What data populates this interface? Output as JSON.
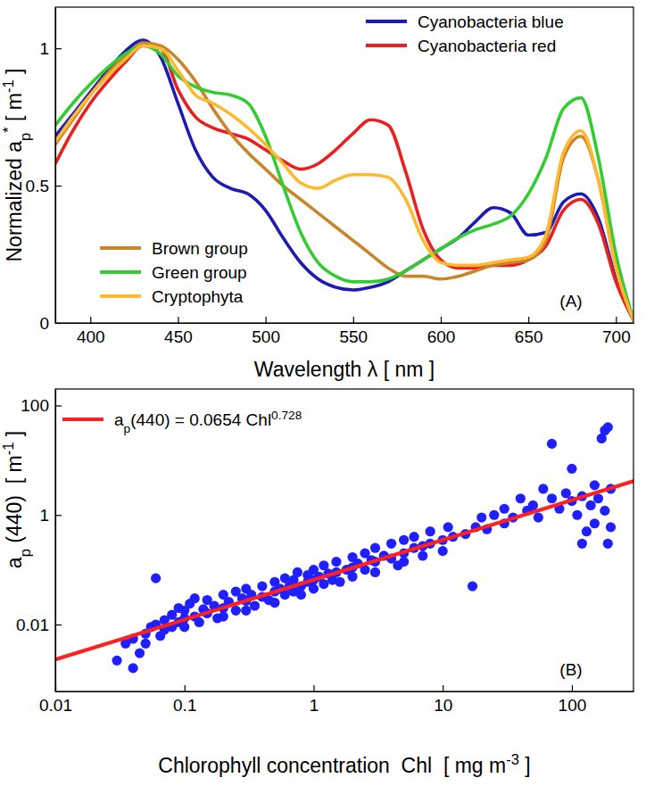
{
  "chart_data": [
    {
      "type": "line",
      "xlabel": "Wavelength λ [ nm ]",
      "ylabel": [
        "Normalized a",
        {
          "sub": "p"
        },
        {
          "sup": "*"
        },
        " [ m",
        {
          "sup": "-1"
        },
        " ]"
      ],
      "annotations": [
        "(A)"
      ],
      "x": [
        380,
        390,
        400,
        410,
        420,
        430,
        440,
        450,
        460,
        470,
        480,
        490,
        500,
        510,
        520,
        530,
        540,
        550,
        560,
        570,
        580,
        590,
        600,
        610,
        620,
        630,
        640,
        650,
        660,
        670,
        680,
        690,
        700,
        710
      ],
      "xlim": [
        380,
        710
      ],
      "xticks": [
        400,
        450,
        500,
        550,
        600,
        650,
        700
      ],
      "ylim": [
        0,
        1.15
      ],
      "yticks": [
        0,
        0.5,
        1
      ],
      "grid": false,
      "legend": "upper right",
      "series": [
        {
          "name": "Cyanobacteria blue",
          "color": "#1c1cb4",
          "values": [
            0.68,
            0.76,
            0.84,
            0.92,
            0.99,
            1.03,
            0.97,
            0.8,
            0.63,
            0.53,
            0.49,
            0.47,
            0.41,
            0.31,
            0.22,
            0.16,
            0.13,
            0.12,
            0.13,
            0.15,
            0.19,
            0.23,
            0.27,
            0.31,
            0.37,
            0.42,
            0.4,
            0.32,
            0.33,
            0.44,
            0.47,
            0.38,
            0.16,
            0.01
          ]
        },
        {
          "name": "Cyanobacteria red",
          "color": "#e82020",
          "values": [
            0.58,
            0.7,
            0.8,
            0.88,
            0.95,
            1.01,
            1.0,
            0.85,
            0.75,
            0.71,
            0.69,
            0.67,
            0.63,
            0.59,
            0.56,
            0.58,
            0.63,
            0.69,
            0.74,
            0.72,
            0.55,
            0.34,
            0.23,
            0.2,
            0.2,
            0.21,
            0.21,
            0.23,
            0.28,
            0.41,
            0.45,
            0.36,
            0.15,
            0.01
          ]
        },
        {
          "name": "Brown group",
          "color": "#c8862a",
          "values": [
            0.65,
            0.74,
            0.83,
            0.91,
            0.97,
            1.02,
            1.01,
            0.96,
            0.88,
            0.78,
            0.69,
            0.62,
            0.56,
            0.5,
            0.45,
            0.4,
            0.35,
            0.3,
            0.25,
            0.2,
            0.17,
            0.17,
            0.16,
            0.17,
            0.19,
            0.21,
            0.22,
            0.23,
            0.3,
            0.6,
            0.68,
            0.52,
            0.2,
            0.01
          ]
        },
        {
          "name": "Green group",
          "color": "#33cc33",
          "values": [
            0.72,
            0.8,
            0.87,
            0.93,
            0.98,
            1.01,
            0.98,
            0.9,
            0.86,
            0.84,
            0.83,
            0.8,
            0.68,
            0.5,
            0.33,
            0.22,
            0.17,
            0.15,
            0.15,
            0.16,
            0.19,
            0.23,
            0.27,
            0.31,
            0.34,
            0.36,
            0.39,
            0.47,
            0.6,
            0.78,
            0.82,
            0.6,
            0.25,
            0.01
          ]
        },
        {
          "name": "Cryptophyta",
          "color": "#ffb830",
          "values": [
            0.66,
            0.75,
            0.83,
            0.9,
            0.96,
            1.01,
            1.0,
            0.92,
            0.83,
            0.8,
            0.76,
            0.71,
            0.65,
            0.58,
            0.51,
            0.49,
            0.52,
            0.54,
            0.54,
            0.53,
            0.45,
            0.3,
            0.22,
            0.21,
            0.21,
            0.22,
            0.23,
            0.24,
            0.32,
            0.62,
            0.7,
            0.52,
            0.2,
            0.01
          ]
        }
      ]
    },
    {
      "type": "scatter",
      "xlabel": [
        "Chlorophyll concentration  Chl  [ mg m",
        {
          "sup": "-3"
        },
        " ]"
      ],
      "ylabel": [
        "a",
        {
          "sub": "p"
        },
        " (440)  [ m",
        {
          "sup": "-1"
        },
        " ]"
      ],
      "annotations": [
        "(B)"
      ],
      "log": true,
      "xlim": [
        0.01,
        300
      ],
      "xticks": [
        0.01,
        0.1,
        1,
        10,
        100
      ],
      "ylim": [
        0.0006,
        200
      ],
      "yticks": [
        0.01,
        1,
        100
      ],
      "grid": false,
      "legend": "upper left",
      "series": [
        {
          "type": "scatter",
          "color": "#1f1fff",
          "marker": "circle",
          "x": [
            0.03,
            0.035,
            0.04,
            0.04,
            0.045,
            0.05,
            0.05,
            0.055,
            0.06,
            0.06,
            0.065,
            0.07,
            0.07,
            0.08,
            0.08,
            0.09,
            0.09,
            0.1,
            0.1,
            0.1,
            0.11,
            0.12,
            0.12,
            0.13,
            0.14,
            0.15,
            0.15,
            0.17,
            0.18,
            0.2,
            0.2,
            0.2,
            0.22,
            0.25,
            0.25,
            0.28,
            0.3,
            0.3,
            0.3,
            0.33,
            0.35,
            0.4,
            0.4,
            0.45,
            0.5,
            0.5,
            0.5,
            0.55,
            0.6,
            0.6,
            0.65,
            0.7,
            0.7,
            0.75,
            0.8,
            0.8,
            0.9,
            0.9,
            1,
            1,
            1,
            1.1,
            1.2,
            1.2,
            1.3,
            1.4,
            1.5,
            1.5,
            1.6,
            1.8,
            2,
            2,
            2,
            2.2,
            2.5,
            2.5,
            2.8,
            3,
            3,
            3,
            3.5,
            4,
            4,
            4.5,
            5,
            5,
            5,
            6,
            6,
            7,
            7,
            8,
            8,
            10,
            10,
            11,
            12,
            15,
            17,
            18,
            20,
            22,
            25,
            30,
            30,
            35,
            40,
            45,
            50,
            55,
            60,
            70,
            70,
            80,
            90,
            100,
            100,
            110,
            120,
            120,
            130,
            140,
            150,
            150,
            160,
            170,
            180,
            180,
            190,
            190,
            200,
            200
          ],
          "values": [
            0.0022,
            0.0045,
            0.0016,
            0.0055,
            0.003,
            0.0068,
            0.0045,
            0.009,
            0.07,
            0.01,
            0.0062,
            0.012,
            0.008,
            0.015,
            0.009,
            0.011,
            0.02,
            0.013,
            0.018,
            0.009,
            0.024,
            0.014,
            0.03,
            0.011,
            0.019,
            0.016,
            0.028,
            0.022,
            0.013,
            0.02,
            0.035,
            0.014,
            0.026,
            0.018,
            0.04,
            0.03,
            0.027,
            0.045,
            0.018,
            0.035,
            0.022,
            0.032,
            0.05,
            0.028,
            0.04,
            0.06,
            0.025,
            0.045,
            0.035,
            0.07,
            0.05,
            0.04,
            0.065,
            0.09,
            0.05,
            0.035,
            0.06,
            0.08,
            0.065,
            0.045,
            0.1,
            0.075,
            0.055,
            0.12,
            0.085,
            0.065,
            0.09,
            0.14,
            0.06,
            0.1,
            0.11,
            0.17,
            0.075,
            0.13,
            0.1,
            0.2,
            0.15,
            0.14,
            0.25,
            0.09,
            0.18,
            0.16,
            0.3,
            0.12,
            0.2,
            0.35,
            0.14,
            0.25,
            0.4,
            0.27,
            0.18,
            0.3,
            0.5,
            0.35,
            0.22,
            0.6,
            0.4,
            0.45,
            0.05,
            0.6,
            0.9,
            0.55,
            1.0,
            1.3,
            0.7,
            0.9,
            2.0,
            1.2,
            1.5,
            0.9,
            3.0,
            20,
            2.0,
            1.3,
            2.5,
            7,
            1.8,
            1.0,
            0.3,
            2.2,
            0.5,
            1.5,
            3.5,
            0.7,
            2.0,
            25,
            1.2,
            35,
            0.3,
            40,
            0.6,
            3.0
          ]
        },
        {
          "type": "line",
          "name": [
            "a",
            {
              "sub": "p"
            },
            "(440) = 0.0654 Chl",
            {
              "sup": "0.728"
            }
          ],
          "color": "#ff2020",
          "x": [
            0.01,
            300
          ],
          "values": [
            0.00229,
            4.16
          ]
        }
      ]
    }
  ]
}
